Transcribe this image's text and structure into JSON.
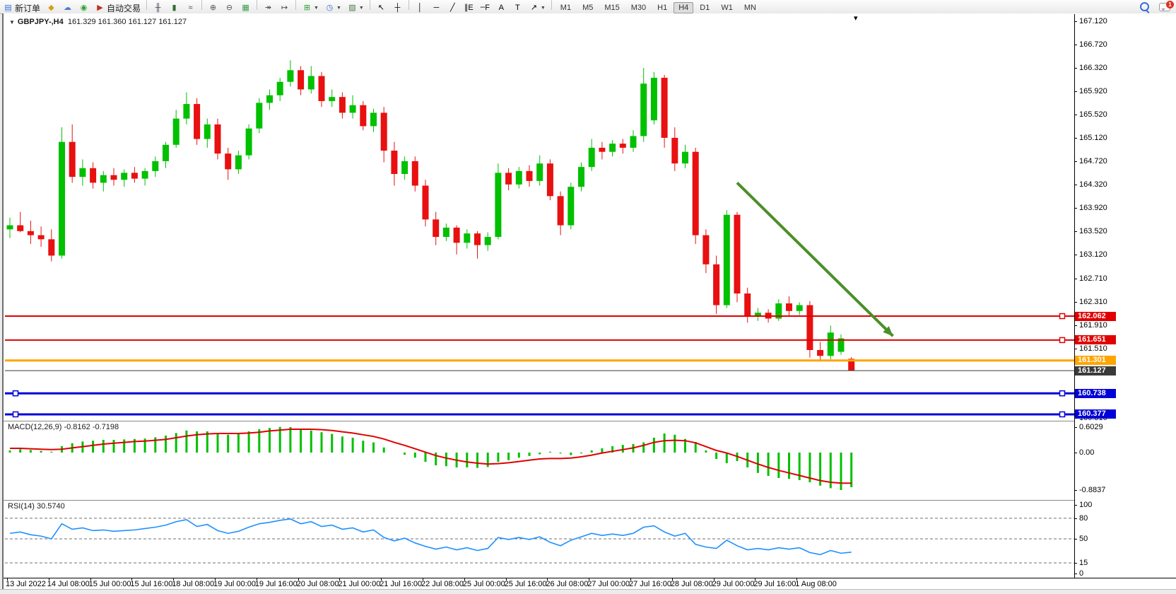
{
  "toolbar": {
    "buttons": [
      {
        "name": "new-order-button",
        "icon": "new-order",
        "label": "新订单"
      },
      {
        "name": "market-button",
        "icon": "diamond"
      },
      {
        "name": "community-button",
        "icon": "cloud"
      },
      {
        "name": "signals-button",
        "icon": "signal"
      },
      {
        "name": "auto-trading-button",
        "icon": "autotrade",
        "label": "自动交易"
      },
      {
        "sep": true
      },
      {
        "name": "bar-chart-button",
        "icon": "bars"
      },
      {
        "name": "candlestick-chart-button",
        "icon": "candles"
      },
      {
        "name": "line-chart-button",
        "icon": "linechart"
      },
      {
        "sep": true
      },
      {
        "name": "zoom-in-button",
        "icon": "zoom-in"
      },
      {
        "name": "zoom-out-button",
        "icon": "zoom-out"
      },
      {
        "name": "tile-windows-button",
        "icon": "tiles"
      },
      {
        "sep": true
      },
      {
        "name": "auto-scroll-button",
        "icon": "autoscroll"
      },
      {
        "name": "chart-shift-button",
        "icon": "shift"
      },
      {
        "sep": true
      },
      {
        "name": "new-chart-button",
        "icon": "new-chart",
        "caret": true
      },
      {
        "name": "period-selector-button",
        "icon": "clock",
        "caret": true
      },
      {
        "name": "templates-button",
        "icon": "template",
        "caret": true
      },
      {
        "sep": true
      },
      {
        "name": "cursor-button",
        "icon": "cursor"
      },
      {
        "name": "crosshair-button",
        "icon": "crosshair"
      },
      {
        "sep": true
      },
      {
        "name": "vertical-line-button",
        "icon": "vline"
      },
      {
        "name": "horizontal-line-button",
        "icon": "hline"
      },
      {
        "name": "trendline-button",
        "icon": "trend"
      },
      {
        "name": "channel-button",
        "icon": "channel"
      },
      {
        "name": "fibonacci-button",
        "icon": "fibo"
      },
      {
        "name": "text-button",
        "icon": "text"
      },
      {
        "name": "text-label-button",
        "icon": "label"
      },
      {
        "name": "arrows-button",
        "icon": "shapes",
        "caret": true
      },
      {
        "sep": true
      }
    ],
    "timeframes": [
      "M1",
      "M5",
      "M15",
      "M30",
      "H1",
      "H4",
      "D1",
      "W1",
      "MN"
    ],
    "active_timeframe": "H4",
    "notification_count": "1"
  },
  "chart_data": {
    "type": "candlestick",
    "symbol_period": "GBPJPY-,H4",
    "ohlc_line": "161.329 161.360 161.127 161.127",
    "colors": {
      "bull": "#00C000",
      "bear": "#E81010",
      "macd_hist": "#00C000",
      "macd_signal": "#E00000",
      "rsi": "#1E90FF",
      "level_red": "#E00000",
      "level_orange": "#FFA500",
      "level_blue": "#0000D8",
      "price_line": "#3a3a3a",
      "arrow": "#4a8f28"
    },
    "price_axis_ticks": [
      "167.120",
      "166.720",
      "166.320",
      "165.920",
      "165.520",
      "165.120",
      "164.720",
      "164.320",
      "163.920",
      "163.520",
      "163.120",
      "162.710",
      "162.310",
      "161.910",
      "161.510",
      "160.710",
      "160.310"
    ],
    "time_axis_labels": [
      "13 Jul 2022",
      "14 Jul 08:00",
      "15 Jul 00:00",
      "15 Jul 16:00",
      "18 Jul 08:00",
      "19 Jul 00:00",
      "19 Jul 16:00",
      "20 Jul 08:00",
      "21 Jul 00:00",
      "21 Jul 16:00",
      "22 Jul 08:00",
      "25 Jul 00:00",
      "25 Jul 16:00",
      "26 Jul 08:00",
      "27 Jul 00:00",
      "27 Jul 16:00",
      "28 Jul 08:00",
      "29 Jul 00:00",
      "29 Jul 16:00",
      "1 Aug 08:00"
    ],
    "levels": [
      {
        "price": 162.062,
        "label": "162.062",
        "kind": "red"
      },
      {
        "price": 161.651,
        "label": "161.651",
        "kind": "red"
      },
      {
        "price": 161.301,
        "label": "161.301",
        "kind": "orange"
      },
      {
        "price": 161.127,
        "label": "161.127",
        "kind": "price"
      },
      {
        "price": 160.738,
        "label": "160.738",
        "kind": "blue"
      },
      {
        "price": 160.377,
        "label": "160.377",
        "kind": "blue"
      }
    ],
    "candles": [
      [
        163.55,
        163.75,
        163.4,
        163.62
      ],
      [
        163.62,
        163.85,
        163.5,
        163.52
      ],
      [
        163.52,
        163.7,
        163.3,
        163.45
      ],
      [
        163.45,
        163.6,
        163.25,
        163.38
      ],
      [
        163.38,
        163.55,
        163.0,
        163.1
      ],
      [
        163.1,
        165.3,
        163.05,
        165.05
      ],
      [
        165.05,
        165.35,
        164.35,
        164.45
      ],
      [
        164.45,
        164.75,
        164.3,
        164.6
      ],
      [
        164.6,
        164.7,
        164.25,
        164.35
      ],
      [
        164.35,
        164.55,
        164.2,
        164.48
      ],
      [
        164.48,
        164.6,
        164.3,
        164.4
      ],
      [
        164.4,
        164.58,
        164.28,
        164.52
      ],
      [
        164.52,
        164.62,
        164.35,
        164.42
      ],
      [
        164.42,
        164.6,
        164.3,
        164.55
      ],
      [
        164.55,
        164.8,
        164.45,
        164.72
      ],
      [
        164.72,
        165.05,
        164.6,
        165.0
      ],
      [
        165.0,
        165.6,
        164.95,
        165.45
      ],
      [
        165.45,
        165.9,
        165.35,
        165.7
      ],
      [
        165.7,
        165.8,
        165.0,
        165.1
      ],
      [
        165.1,
        165.45,
        164.95,
        165.35
      ],
      [
        165.35,
        165.45,
        164.75,
        164.85
      ],
      [
        164.85,
        164.95,
        164.4,
        164.58
      ],
      [
        164.58,
        164.9,
        164.5,
        164.82
      ],
      [
        164.82,
        165.35,
        164.75,
        165.28
      ],
      [
        165.28,
        165.8,
        165.2,
        165.72
      ],
      [
        165.72,
        165.95,
        165.6,
        165.85
      ],
      [
        165.85,
        166.15,
        165.75,
        166.08
      ],
      [
        166.08,
        166.45,
        166.0,
        166.28
      ],
      [
        166.28,
        166.35,
        165.85,
        165.95
      ],
      [
        165.95,
        166.35,
        165.88,
        166.18
      ],
      [
        166.18,
        166.25,
        165.65,
        165.75
      ],
      [
        165.75,
        165.95,
        165.65,
        165.82
      ],
      [
        165.82,
        165.9,
        165.45,
        165.55
      ],
      [
        165.55,
        165.85,
        165.45,
        165.68
      ],
      [
        165.68,
        165.75,
        165.25,
        165.32
      ],
      [
        165.32,
        165.62,
        165.22,
        165.55
      ],
      [
        165.55,
        165.65,
        164.7,
        164.9
      ],
      [
        164.9,
        165.05,
        164.3,
        164.5
      ],
      [
        164.5,
        164.8,
        164.4,
        164.72
      ],
      [
        164.72,
        164.8,
        164.2,
        164.3
      ],
      [
        164.3,
        164.4,
        163.6,
        163.72
      ],
      [
        163.72,
        163.85,
        163.28,
        163.42
      ],
      [
        163.42,
        163.65,
        163.35,
        163.58
      ],
      [
        163.58,
        163.62,
        163.12,
        163.32
      ],
      [
        163.32,
        163.55,
        163.22,
        163.48
      ],
      [
        163.48,
        163.52,
        163.05,
        163.28
      ],
      [
        163.28,
        163.5,
        163.18,
        163.42
      ],
      [
        163.42,
        164.68,
        163.38,
        164.52
      ],
      [
        164.52,
        164.6,
        164.22,
        164.32
      ],
      [
        164.32,
        164.62,
        164.25,
        164.55
      ],
      [
        164.55,
        164.65,
        164.28,
        164.38
      ],
      [
        164.38,
        164.82,
        164.3,
        164.68
      ],
      [
        164.68,
        164.75,
        164.05,
        164.12
      ],
      [
        164.12,
        164.2,
        163.45,
        163.62
      ],
      [
        163.62,
        164.35,
        163.55,
        164.28
      ],
      [
        164.28,
        164.7,
        164.2,
        164.62
      ],
      [
        164.62,
        165.1,
        164.55,
        164.95
      ],
      [
        164.95,
        165.05,
        164.75,
        164.88
      ],
      [
        164.88,
        165.08,
        164.8,
        165.02
      ],
      [
        165.02,
        165.1,
        164.85,
        164.95
      ],
      [
        164.95,
        165.25,
        164.88,
        165.15
      ],
      [
        165.15,
        166.32,
        165.05,
        166.05
      ],
      [
        165.42,
        166.25,
        165.35,
        166.15
      ],
      [
        166.15,
        166.2,
        164.95,
        165.12
      ],
      [
        165.12,
        165.3,
        164.55,
        164.68
      ],
      [
        164.68,
        165.0,
        164.6,
        164.88
      ],
      [
        164.88,
        164.95,
        163.3,
        163.45
      ],
      [
        163.45,
        163.55,
        162.8,
        162.95
      ],
      [
        162.95,
        163.1,
        162.1,
        162.25
      ],
      [
        162.25,
        163.88,
        162.2,
        163.8
      ],
      [
        163.8,
        163.85,
        162.3,
        162.45
      ],
      [
        162.45,
        162.55,
        161.95,
        162.05
      ],
      [
        162.05,
        162.2,
        161.98,
        162.12
      ],
      [
        162.12,
        162.18,
        161.95,
        162.02
      ],
      [
        162.02,
        162.35,
        161.98,
        162.28
      ],
      [
        162.28,
        162.4,
        162.05,
        162.15
      ],
      [
        162.15,
        162.3,
        162.08,
        162.25
      ],
      [
        162.25,
        162.32,
        161.35,
        161.48
      ],
      [
        161.48,
        161.62,
        161.28,
        161.38
      ],
      [
        161.38,
        161.9,
        161.32,
        161.78
      ],
      [
        161.45,
        161.75,
        161.4,
        161.68
      ],
      [
        161.329,
        161.36,
        161.127,
        161.127
      ]
    ],
    "indicators": {
      "macd": {
        "display": "MACD(12,26,9) -0.8162 -0.7198",
        "scale": [
          "0.6029",
          "0.00",
          "-0.8837"
        ],
        "histogram": [
          0.05,
          0.08,
          0.06,
          0.04,
          0.02,
          0.15,
          0.22,
          0.26,
          0.28,
          0.3,
          0.3,
          0.31,
          0.32,
          0.33,
          0.36,
          0.4,
          0.46,
          0.52,
          0.5,
          0.5,
          0.46,
          0.42,
          0.44,
          0.5,
          0.55,
          0.58,
          0.6029,
          0.6,
          0.55,
          0.52,
          0.48,
          0.44,
          0.38,
          0.35,
          0.28,
          0.24,
          0.12,
          0.0,
          -0.05,
          -0.12,
          -0.22,
          -0.3,
          -0.32,
          -0.35,
          -0.35,
          -0.36,
          -0.34,
          -0.22,
          -0.18,
          -0.12,
          -0.08,
          -0.04,
          0.02,
          -0.02,
          -0.06,
          -0.02,
          0.05,
          0.1,
          0.15,
          0.18,
          0.2,
          0.24,
          0.35,
          0.45,
          0.42,
          0.32,
          0.25,
          0.05,
          -0.15,
          -0.25,
          -0.2,
          -0.35,
          -0.48,
          -0.55,
          -0.6,
          -0.62,
          -0.65,
          -0.7,
          -0.78,
          -0.84,
          -0.8837,
          -0.8162
        ],
        "signal": [
          0.1,
          0.1,
          0.09,
          0.08,
          0.07,
          0.08,
          0.11,
          0.14,
          0.17,
          0.2,
          0.22,
          0.24,
          0.26,
          0.27,
          0.29,
          0.31,
          0.35,
          0.39,
          0.42,
          0.44,
          0.45,
          0.45,
          0.45,
          0.46,
          0.48,
          0.51,
          0.53,
          0.55,
          0.55,
          0.55,
          0.54,
          0.52,
          0.49,
          0.46,
          0.42,
          0.38,
          0.32,
          0.24,
          0.17,
          0.09,
          0.01,
          -0.07,
          -0.13,
          -0.18,
          -0.22,
          -0.25,
          -0.27,
          -0.26,
          -0.24,
          -0.21,
          -0.18,
          -0.15,
          -0.14,
          -0.14,
          -0.13,
          -0.1,
          -0.06,
          -0.01,
          0.03,
          0.07,
          0.11,
          0.17,
          0.24,
          0.28,
          0.29,
          0.28,
          0.23,
          0.14,
          0.05,
          -0.01,
          -0.09,
          -0.18,
          -0.27,
          -0.35,
          -0.42,
          -0.48,
          -0.54,
          -0.6,
          -0.66,
          -0.7,
          -0.72,
          -0.7198
        ]
      },
      "rsi": {
        "display": "RSI(14) 30.5740",
        "scale": [
          "100",
          "80",
          "50",
          "15",
          "0"
        ],
        "dashed_levels": [
          80,
          50,
          15
        ],
        "values": [
          58,
          60,
          56,
          54,
          50,
          72,
          64,
          66,
          62,
          63,
          61,
          62,
          63,
          65,
          67,
          70,
          75,
          78,
          68,
          71,
          62,
          58,
          61,
          67,
          72,
          74,
          77,
          79,
          72,
          75,
          68,
          70,
          64,
          66,
          60,
          63,
          52,
          47,
          51,
          44,
          39,
          35,
          38,
          34,
          37,
          33,
          36,
          52,
          49,
          52,
          49,
          53,
          45,
          40,
          48,
          53,
          58,
          55,
          57,
          55,
          58,
          67,
          69,
          60,
          54,
          58,
          42,
          38,
          36,
          48,
          40,
          34,
          36,
          34,
          37,
          35,
          37,
          30,
          27,
          33,
          29,
          30.57
        ]
      }
    },
    "annotations": [
      {
        "type": "arrow",
        "color": "#4a8f28",
        "from": {
          "index": 70,
          "price": 164.35
        },
        "to": {
          "index": 85,
          "price": 161.72
        }
      }
    ]
  }
}
